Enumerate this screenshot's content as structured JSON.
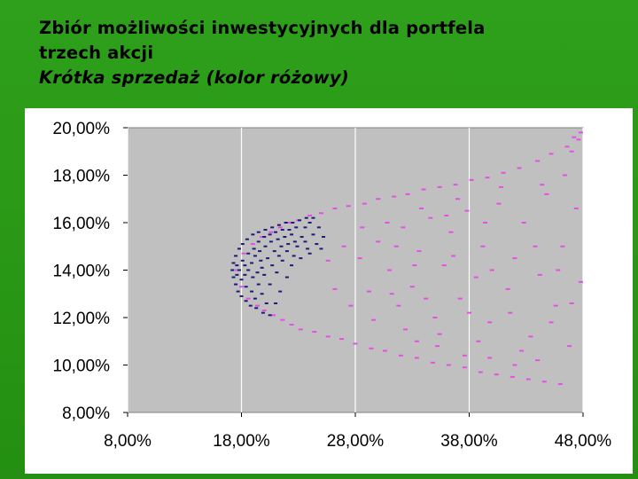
{
  "slide": {
    "title_lines": [
      "Zbiór możliwości inwestycyjnych dla portfela",
      "trzech akcji",
      "Krótka sprzedaż (kolor różowy)"
    ]
  },
  "colors": {
    "background_green": "#2ba018",
    "plot_area": "#c0c0c0",
    "short_sale_points": "#e64ee6",
    "no_short_sale_points": "#1a1a7a"
  },
  "chart_data": {
    "type": "scatter",
    "title": "",
    "xlabel": "",
    "ylabel": "",
    "xlim": [
      0.08,
      0.48
    ],
    "ylim": [
      0.08,
      0.2
    ],
    "x_ticks": [
      "8,00%",
      "18,00%",
      "28,00%",
      "38,00%",
      "48,00%"
    ],
    "y_ticks": [
      "20,00%",
      "18,00%",
      "16,00%",
      "14,00%",
      "12,00%",
      "10,00%",
      "8,00%"
    ],
    "grid": "vertical",
    "legend": "none",
    "series": [
      {
        "color": "#e64ee6",
        "points": [
          [
            0.176,
            0.14
          ],
          [
            0.18,
            0.133
          ],
          [
            0.182,
            0.147
          ],
          [
            0.186,
            0.128
          ],
          [
            0.19,
            0.151
          ],
          [
            0.194,
            0.125
          ],
          [
            0.198,
            0.154
          ],
          [
            0.2,
            0.123
          ],
          [
            0.206,
            0.156
          ],
          [
            0.208,
            0.121
          ],
          [
            0.214,
            0.158
          ],
          [
            0.216,
            0.119
          ],
          [
            0.222,
            0.16
          ],
          [
            0.224,
            0.117
          ],
          [
            0.23,
            0.161
          ],
          [
            0.232,
            0.115
          ],
          [
            0.24,
            0.163
          ],
          [
            0.244,
            0.114
          ],
          [
            0.25,
            0.164
          ],
          [
            0.256,
            0.112
          ],
          [
            0.262,
            0.166
          ],
          [
            0.268,
            0.111
          ],
          [
            0.274,
            0.167
          ],
          [
            0.28,
            0.109
          ],
          [
            0.288,
            0.168
          ],
          [
            0.294,
            0.107
          ],
          [
            0.3,
            0.17
          ],
          [
            0.306,
            0.106
          ],
          [
            0.314,
            0.171
          ],
          [
            0.32,
            0.104
          ],
          [
            0.326,
            0.172
          ],
          [
            0.334,
            0.103
          ],
          [
            0.34,
            0.174
          ],
          [
            0.348,
            0.101
          ],
          [
            0.354,
            0.175
          ],
          [
            0.362,
            0.1
          ],
          [
            0.368,
            0.176
          ],
          [
            0.376,
            0.099
          ],
          [
            0.382,
            0.178
          ],
          [
            0.39,
            0.097
          ],
          [
            0.396,
            0.179
          ],
          [
            0.404,
            0.096
          ],
          [
            0.41,
            0.181
          ],
          [
            0.418,
            0.095
          ],
          [
            0.424,
            0.183
          ],
          [
            0.432,
            0.094
          ],
          [
            0.44,
            0.186
          ],
          [
            0.446,
            0.093
          ],
          [
            0.452,
            0.189
          ],
          [
            0.46,
            0.092
          ],
          [
            0.466,
            0.192
          ],
          [
            0.472,
            0.196
          ],
          [
            0.478,
            0.198
          ],
          [
            0.476,
            0.195
          ],
          [
            0.47,
            0.19
          ],
          [
            0.284,
            0.145
          ],
          [
            0.3,
            0.152
          ],
          [
            0.292,
            0.131
          ],
          [
            0.31,
            0.14
          ],
          [
            0.322,
            0.158
          ],
          [
            0.318,
            0.125
          ],
          [
            0.336,
            0.148
          ],
          [
            0.33,
            0.133
          ],
          [
            0.346,
            0.162
          ],
          [
            0.35,
            0.12
          ],
          [
            0.358,
            0.142
          ],
          [
            0.364,
            0.156
          ],
          [
            0.372,
            0.128
          ],
          [
            0.378,
            0.165
          ],
          [
            0.386,
            0.137
          ],
          [
            0.392,
            0.15
          ],
          [
            0.398,
            0.118
          ],
          [
            0.406,
            0.168
          ],
          [
            0.414,
            0.132
          ],
          [
            0.42,
            0.145
          ],
          [
            0.428,
            0.16
          ],
          [
            0.434,
            0.112
          ],
          [
            0.442,
            0.138
          ],
          [
            0.448,
            0.172
          ],
          [
            0.456,
            0.125
          ],
          [
            0.462,
            0.15
          ],
          [
            0.468,
            0.108
          ],
          [
            0.474,
            0.166
          ],
          [
            0.478,
            0.135
          ],
          [
            0.464,
            0.18
          ],
          [
            0.444,
            0.176
          ],
          [
            0.426,
            0.106
          ],
          [
            0.408,
            0.175
          ],
          [
            0.388,
            0.11
          ],
          [
            0.37,
            0.17
          ],
          [
            0.352,
            0.108
          ],
          [
            0.338,
            0.166
          ],
          [
            0.324,
            0.115
          ],
          [
            0.308,
            0.16
          ],
          [
            0.296,
            0.119
          ],
          [
            0.27,
            0.15
          ],
          [
            0.262,
            0.132
          ],
          [
            0.276,
            0.125
          ],
          [
            0.286,
            0.158
          ],
          [
            0.256,
            0.144
          ],
          [
            0.312,
            0.13
          ],
          [
            0.342,
            0.128
          ],
          [
            0.366,
            0.146
          ],
          [
            0.394,
            0.16
          ],
          [
            0.416,
            0.122
          ],
          [
            0.438,
            0.15
          ],
          [
            0.458,
            0.14
          ],
          [
            0.4,
            0.14
          ],
          [
            0.38,
            0.122
          ],
          [
            0.36,
            0.163
          ],
          [
            0.332,
            0.142
          ],
          [
            0.316,
            0.15
          ],
          [
            0.44,
            0.102
          ],
          [
            0.452,
            0.118
          ],
          [
            0.47,
            0.126
          ],
          [
            0.42,
            0.1
          ],
          [
            0.398,
            0.103
          ],
          [
            0.376,
            0.104
          ],
          [
            0.354,
            0.113
          ],
          [
            0.334,
            0.11
          ]
        ]
      },
      {
        "color": "#1a1a7a",
        "points": [
          [
            0.172,
            0.14
          ],
          [
            0.173,
            0.137
          ],
          [
            0.173,
            0.143
          ],
          [
            0.175,
            0.134
          ],
          [
            0.175,
            0.146
          ],
          [
            0.177,
            0.131
          ],
          [
            0.178,
            0.149
          ],
          [
            0.18,
            0.129
          ],
          [
            0.181,
            0.151
          ],
          [
            0.184,
            0.127
          ],
          [
            0.185,
            0.153
          ],
          [
            0.188,
            0.125
          ],
          [
            0.19,
            0.155
          ],
          [
            0.193,
            0.124
          ],
          [
            0.195,
            0.156
          ],
          [
            0.199,
            0.122
          ],
          [
            0.201,
            0.157
          ],
          [
            0.205,
            0.121
          ],
          [
            0.207,
            0.158
          ],
          [
            0.213,
            0.159
          ],
          [
            0.219,
            0.16
          ],
          [
            0.225,
            0.16
          ],
          [
            0.231,
            0.161
          ],
          [
            0.237,
            0.162
          ],
          [
            0.243,
            0.162
          ],
          [
            0.178,
            0.14
          ],
          [
            0.18,
            0.136
          ],
          [
            0.181,
            0.144
          ],
          [
            0.184,
            0.133
          ],
          [
            0.186,
            0.147
          ],
          [
            0.189,
            0.131
          ],
          [
            0.191,
            0.149
          ],
          [
            0.195,
            0.152
          ],
          [
            0.2,
            0.154
          ],
          [
            0.205,
            0.155
          ],
          [
            0.21,
            0.156
          ],
          [
            0.216,
            0.157
          ],
          [
            0.222,
            0.157
          ],
          [
            0.228,
            0.158
          ],
          [
            0.186,
            0.14
          ],
          [
            0.189,
            0.143
          ],
          [
            0.192,
            0.146
          ],
          [
            0.196,
            0.148
          ],
          [
            0.201,
            0.15
          ],
          [
            0.206,
            0.152
          ],
          [
            0.212,
            0.153
          ],
          [
            0.218,
            0.154
          ],
          [
            0.224,
            0.155
          ],
          [
            0.19,
            0.137
          ],
          [
            0.195,
            0.134
          ],
          [
            0.198,
            0.141
          ],
          [
            0.203,
            0.145
          ],
          [
            0.209,
            0.148
          ],
          [
            0.215,
            0.15
          ],
          [
            0.221,
            0.151
          ],
          [
            0.227,
            0.152
          ],
          [
            0.233,
            0.154
          ],
          [
            0.2,
            0.138
          ],
          [
            0.207,
            0.142
          ],
          [
            0.213,
            0.146
          ],
          [
            0.22,
            0.148
          ],
          [
            0.229,
            0.15
          ],
          [
            0.236,
            0.152
          ],
          [
            0.243,
            0.155
          ],
          [
            0.236,
            0.158
          ],
          [
            0.216,
            0.144
          ],
          [
            0.226,
            0.146
          ],
          [
            0.238,
            0.149
          ],
          [
            0.246,
            0.151
          ],
          [
            0.198,
            0.13
          ],
          [
            0.205,
            0.134
          ],
          [
            0.192,
            0.128
          ],
          [
            0.211,
            0.139
          ],
          [
            0.224,
            0.142
          ],
          [
            0.232,
            0.145
          ],
          [
            0.24,
            0.147
          ],
          [
            0.25,
            0.149
          ],
          [
            0.24,
            0.16
          ],
          [
            0.248,
            0.158
          ],
          [
            0.252,
            0.154
          ],
          [
            0.21,
            0.126
          ],
          [
            0.202,
            0.126
          ],
          [
            0.214,
            0.131
          ],
          [
            0.22,
            0.137
          ],
          [
            0.176,
            0.138
          ],
          [
            0.176,
            0.142
          ],
          [
            0.183,
            0.138
          ],
          [
            0.183,
            0.142
          ],
          [
            0.194,
            0.139
          ],
          [
            0.197,
            0.144
          ]
        ]
      }
    ]
  }
}
